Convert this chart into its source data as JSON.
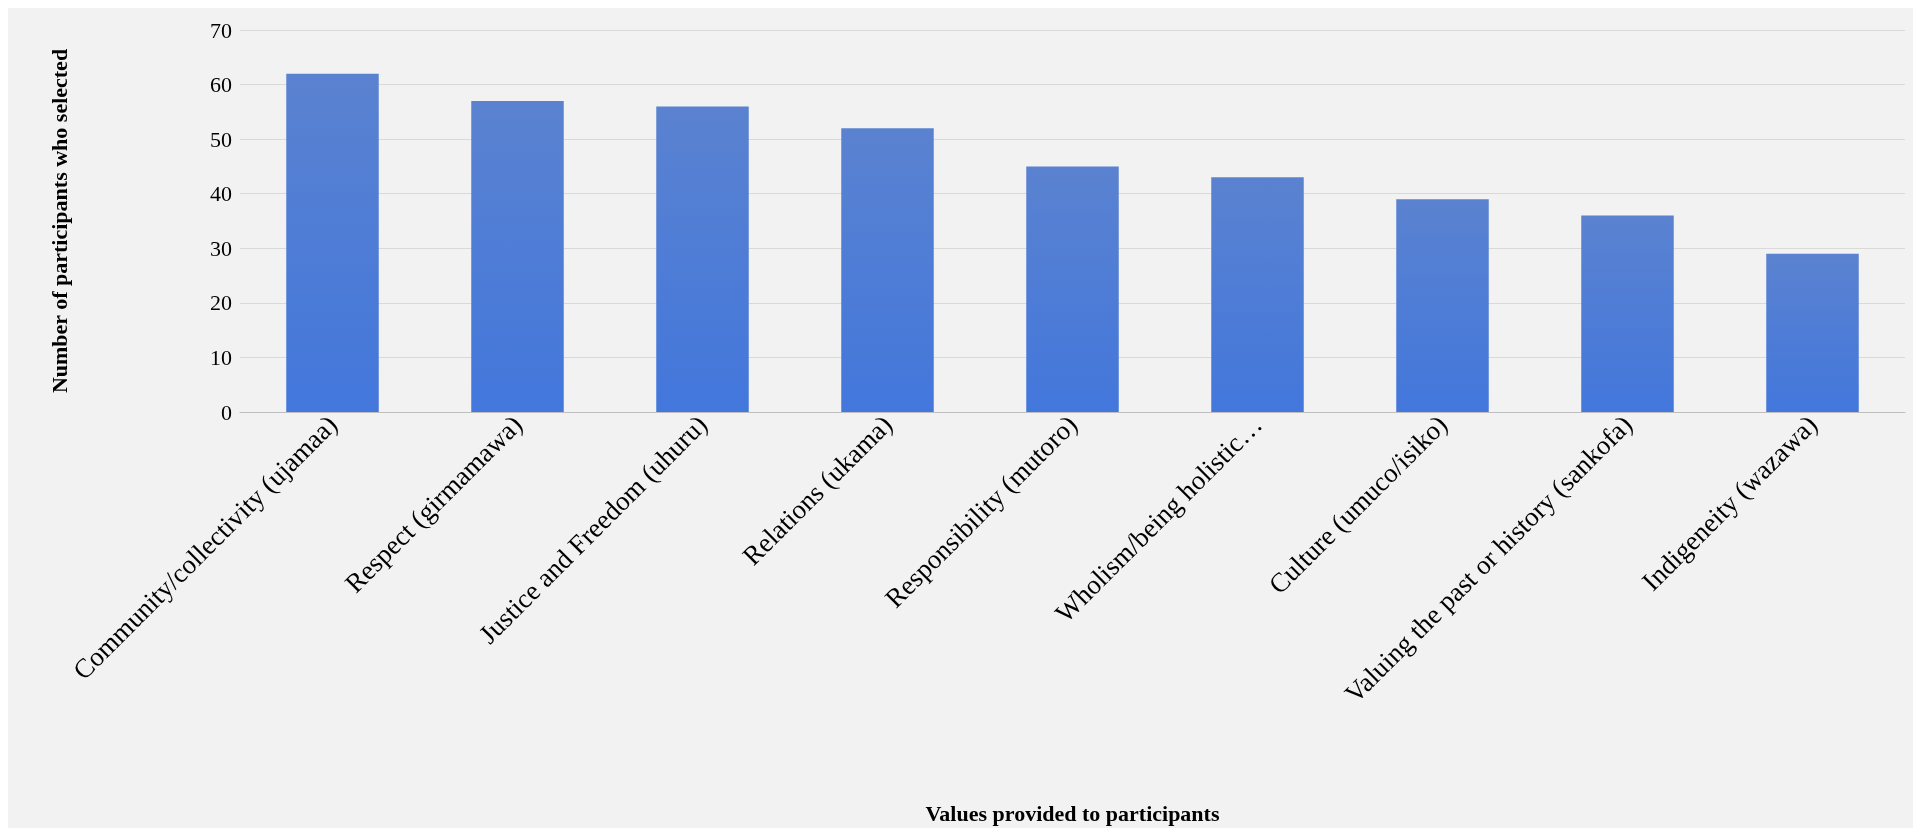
{
  "chart_data": {
    "type": "bar",
    "xlabel": "Values provided to participants",
    "ylabel": "Number of participants who selected",
    "categories": [
      "Community/collectivity (ujamaa)",
      "Respect (girmamawa)",
      "Justice and Freedom (uhuru)",
      "Relations (ukama)",
      "Responsibility (mutoro)",
      "Wholism/being holistic…",
      "Culture (umuco/isiko)",
      "Valuing the past or history (sankofa)",
      "Indigeneity (wazawa)"
    ],
    "values": [
      62,
      57,
      56,
      52,
      45,
      43,
      39,
      36,
      29
    ],
    "color": "#3d6dc8",
    "ylim": [
      0,
      70
    ],
    "yticks": [
      0,
      10,
      20,
      30,
      40,
      50,
      60,
      70
    ],
    "grid": "y"
  }
}
